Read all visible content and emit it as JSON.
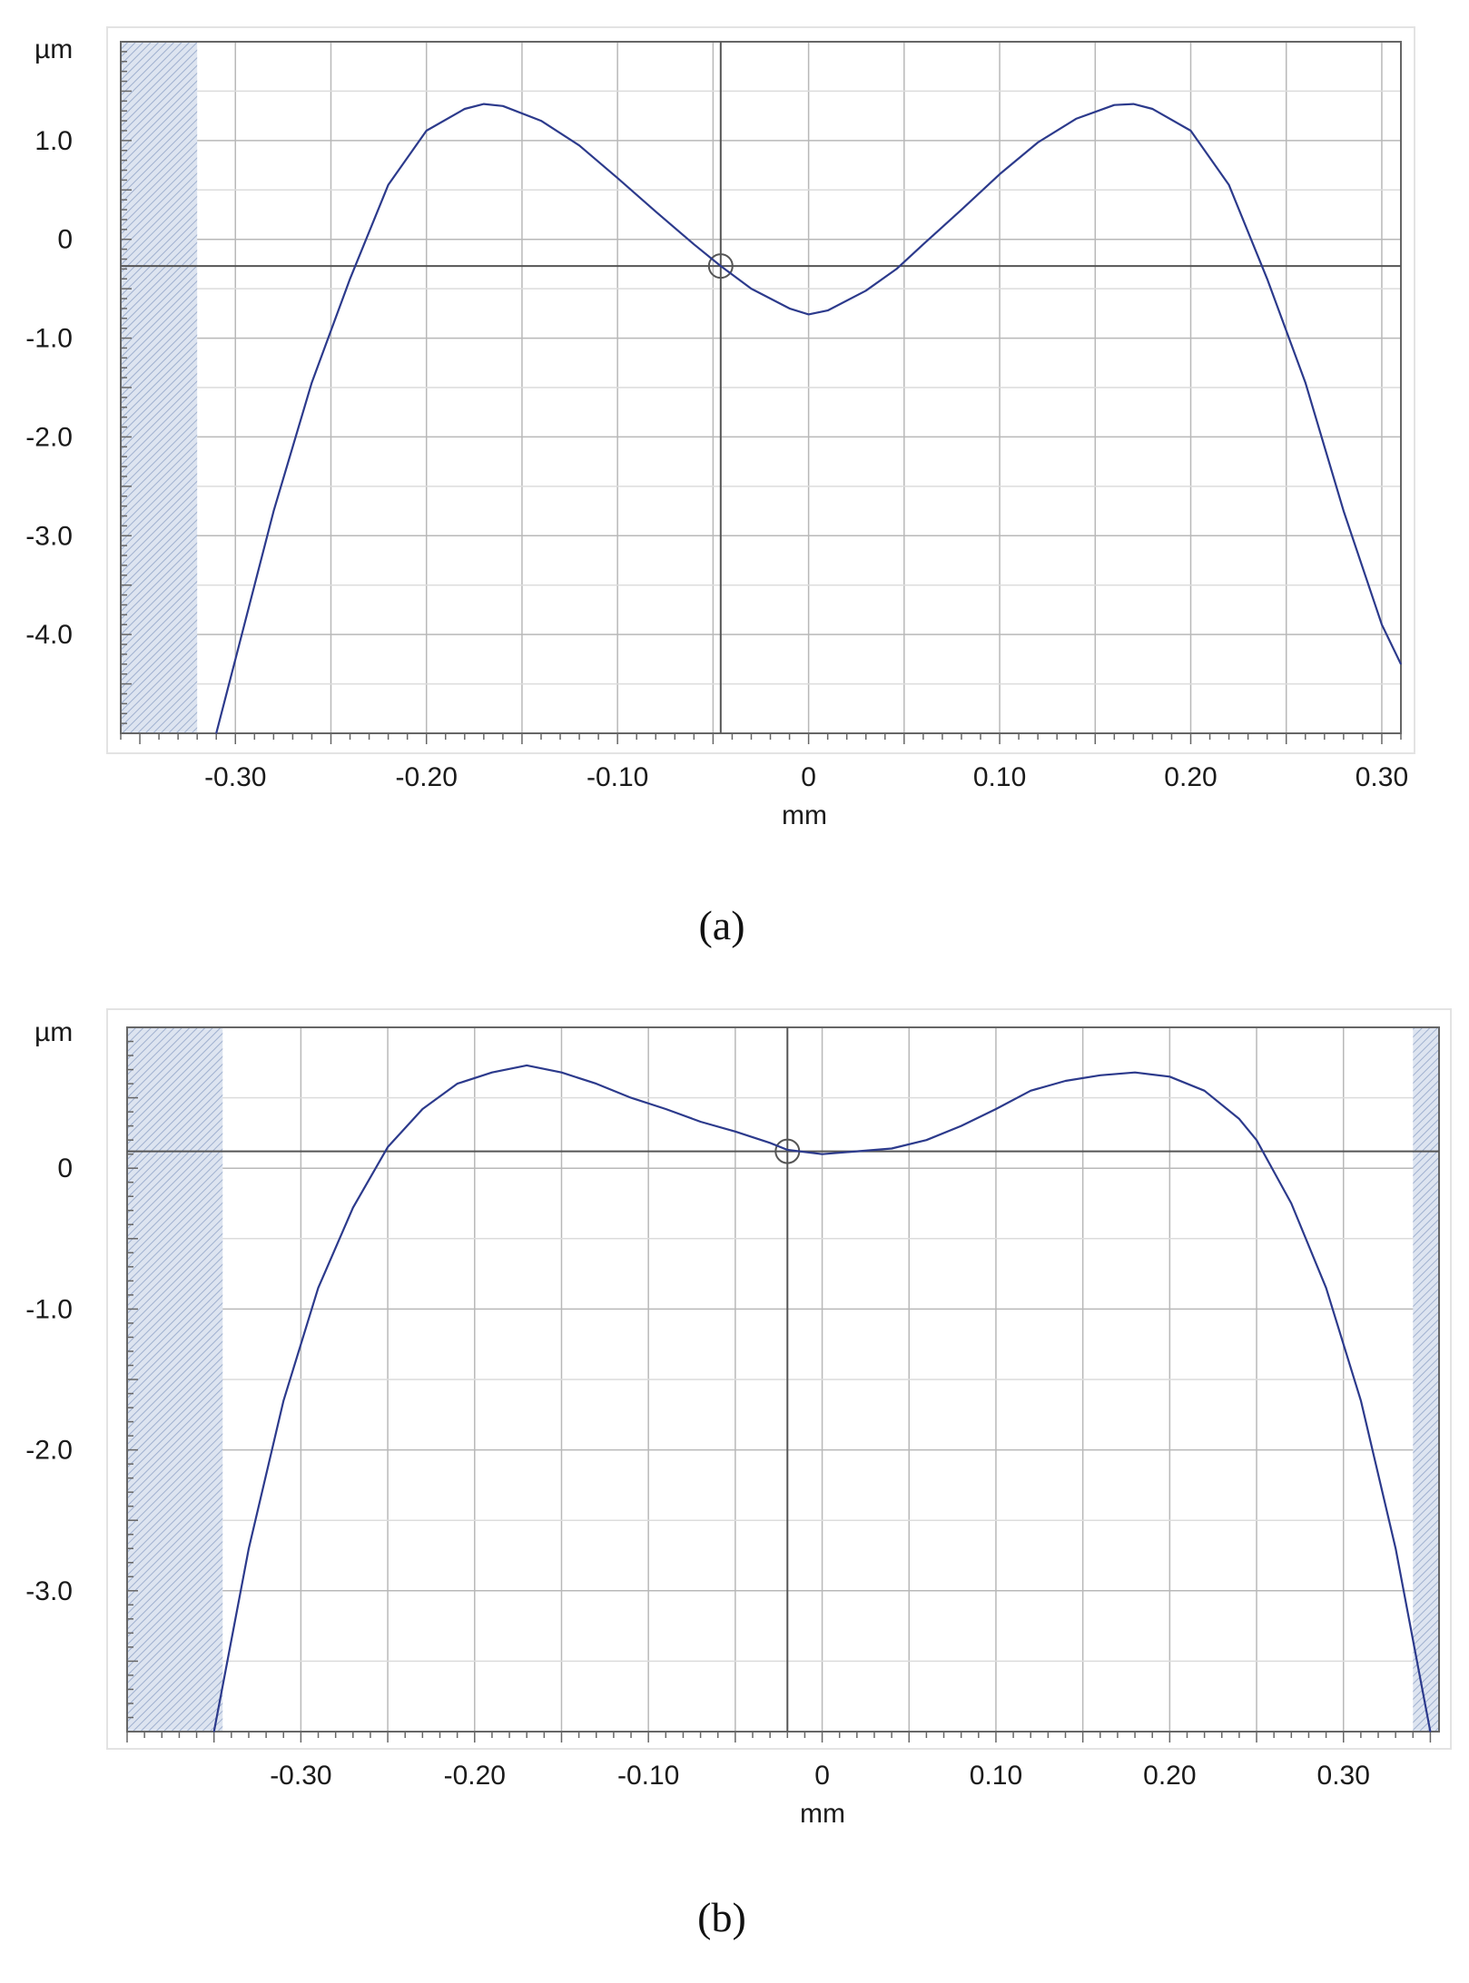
{
  "colors": {
    "curve": "#2c3a8c",
    "grid": "#b8b8b8",
    "gridMinor": "#dcdcdc",
    "crosshair": "#555555",
    "mask": "#c9d3e6",
    "frame": "#666666"
  },
  "chart_data": [
    {
      "type": "line",
      "caption": "(a)",
      "xlabel": "mm",
      "ylabel": "µm",
      "xlim": [
        -0.36,
        0.31
      ],
      "ylim": [
        -5.0,
        2.0
      ],
      "x_ticks": [
        -0.3,
        -0.2,
        -0.1,
        0,
        0.1,
        0.2,
        0.3
      ],
      "x_tick_labels": [
        "-0.30",
        "-0.20",
        "-0.10",
        "0",
        "0.10",
        "0.20",
        "0.30"
      ],
      "y_ticks": [
        1.0,
        0,
        -1.0,
        -2.0,
        -3.0,
        -4.0
      ],
      "y_tick_labels": [
        "1.0",
        "0",
        "-1.0",
        "-2.0",
        "-3.0",
        "-4.0"
      ],
      "grid": true,
      "masked_x_ranges": [
        [
          -0.36,
          -0.32
        ]
      ],
      "cursor": {
        "x": -0.046,
        "y": -0.27
      },
      "series": [
        {
          "x": [
            -0.31,
            -0.3,
            -0.28,
            -0.26,
            -0.24,
            -0.22,
            -0.2,
            -0.18,
            -0.17,
            -0.16,
            -0.14,
            -0.12,
            -0.1,
            -0.08,
            -0.06,
            -0.046,
            -0.03,
            -0.01,
            0,
            0.01,
            0.03,
            0.046,
            0.06,
            0.08,
            0.1,
            0.12,
            0.14,
            0.16,
            0.17,
            0.18,
            0.2,
            0.22,
            0.24,
            0.26,
            0.28,
            0.3,
            0.31
          ],
          "y": [
            -5.0,
            -4.25,
            -2.75,
            -1.45,
            -0.4,
            0.55,
            1.1,
            1.32,
            1.37,
            1.35,
            1.2,
            0.95,
            0.62,
            0.28,
            -0.05,
            -0.27,
            -0.5,
            -0.7,
            -0.76,
            -0.72,
            -0.52,
            -0.3,
            -0.05,
            0.3,
            0.66,
            0.98,
            1.22,
            1.36,
            1.37,
            1.32,
            1.1,
            0.55,
            -0.4,
            -1.45,
            -2.75,
            -3.9,
            -4.3
          ]
        }
      ]
    },
    {
      "type": "line",
      "caption": "(b)",
      "xlabel": "mm",
      "ylabel": "µm",
      "xlim": [
        -0.4,
        0.355
      ],
      "ylim": [
        -4.0,
        1.0
      ],
      "x_ticks": [
        -0.3,
        -0.2,
        -0.1,
        0,
        0.1,
        0.2,
        0.3
      ],
      "x_tick_labels": [
        "-0.30",
        "-0.20",
        "-0.10",
        "0",
        "0.10",
        "0.20",
        "0.30"
      ],
      "y_ticks": [
        0,
        -1.0,
        -2.0,
        -3.0
      ],
      "y_tick_labels": [
        "0",
        "-1.0",
        "-2.0",
        "-3.0"
      ],
      "grid": true,
      "masked_x_ranges": [
        [
          -0.4,
          -0.345
        ],
        [
          0.34,
          0.355
        ]
      ],
      "cursor": {
        "x": -0.02,
        "y": 0.12
      },
      "series": [
        {
          "x": [
            -0.35,
            -0.33,
            -0.31,
            -0.29,
            -0.27,
            -0.25,
            -0.23,
            -0.21,
            -0.19,
            -0.17,
            -0.15,
            -0.13,
            -0.11,
            -0.09,
            -0.07,
            -0.05,
            -0.03,
            -0.02,
            0,
            0.02,
            0.04,
            0.06,
            0.08,
            0.1,
            0.12,
            0.14,
            0.16,
            0.18,
            0.2,
            0.22,
            0.24,
            0.25,
            0.27,
            0.29,
            0.31,
            0.33,
            0.35
          ],
          "y": [
            -4.0,
            -2.7,
            -1.65,
            -0.85,
            -0.28,
            0.15,
            0.42,
            0.6,
            0.68,
            0.73,
            0.68,
            0.6,
            0.5,
            0.42,
            0.33,
            0.26,
            0.18,
            0.13,
            0.1,
            0.12,
            0.14,
            0.2,
            0.3,
            0.42,
            0.55,
            0.62,
            0.66,
            0.68,
            0.65,
            0.55,
            0.35,
            0.2,
            -0.25,
            -0.85,
            -1.65,
            -2.7,
            -4.0
          ]
        }
      ]
    }
  ]
}
